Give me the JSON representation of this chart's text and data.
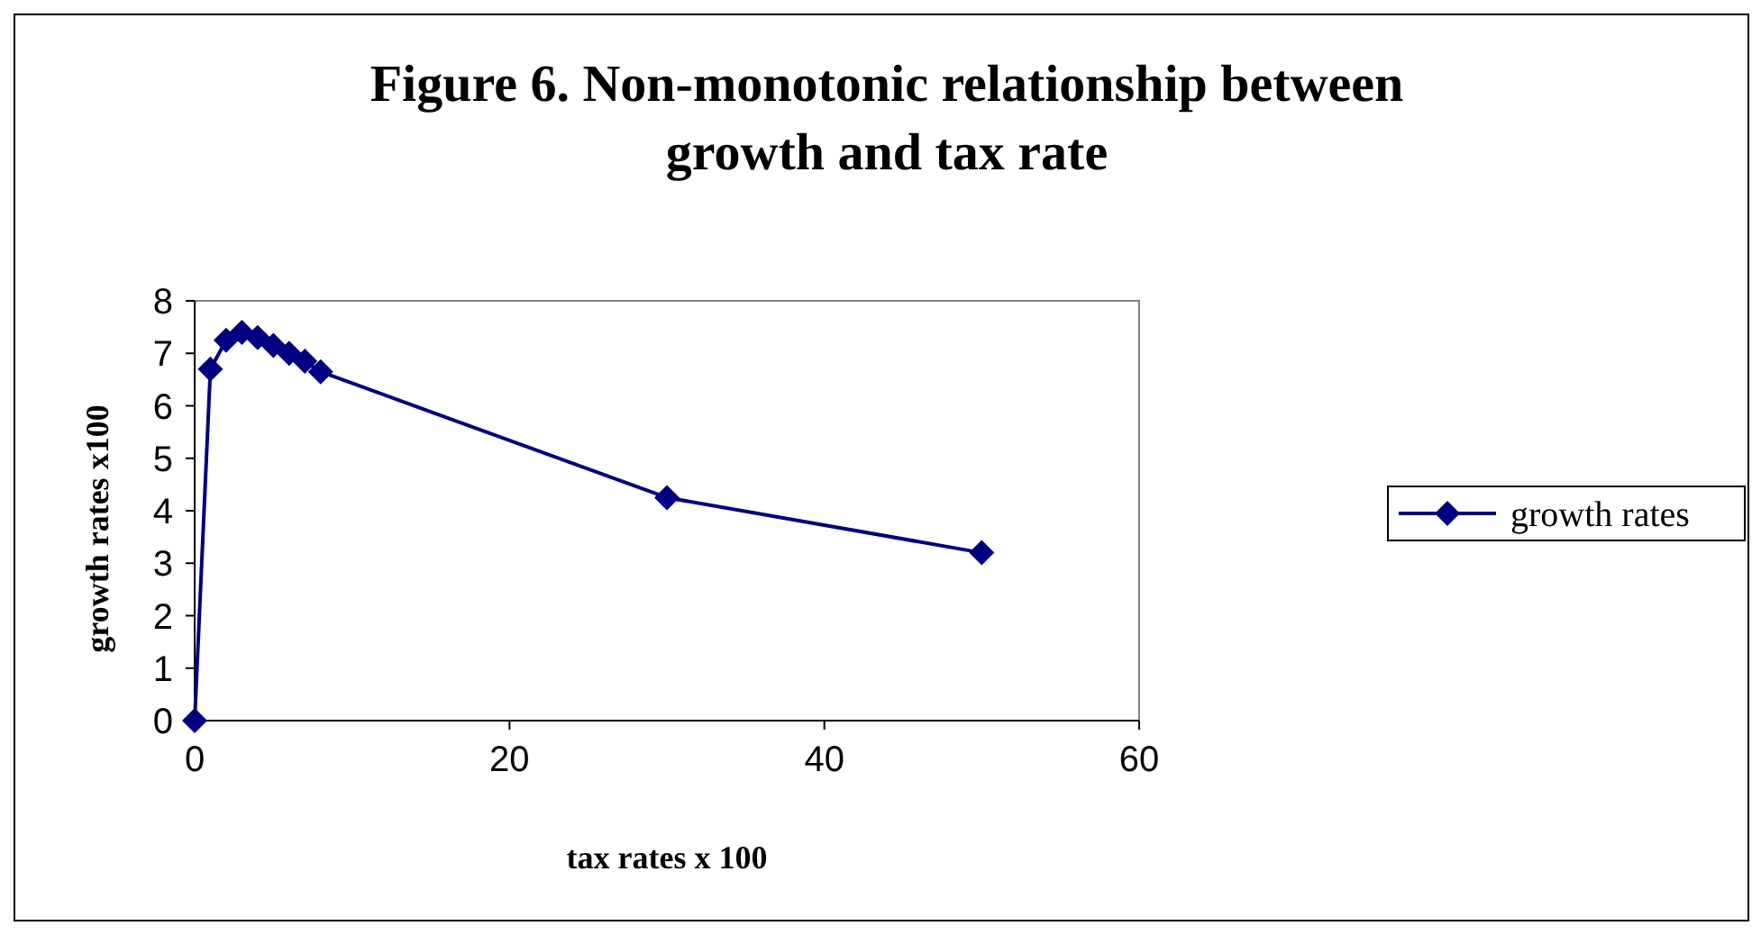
{
  "chart_data": {
    "type": "line",
    "title": "Figure 6. Non-monotonic relationship between growth and tax rate",
    "xlabel": "tax rates x 100",
    "ylabel": "growth rates x100",
    "x": [
      0,
      1,
      2,
      3,
      4,
      5,
      6,
      7,
      8,
      30,
      50
    ],
    "series": [
      {
        "name": "growth rates",
        "color": "#000080",
        "values": [
          0,
          6.7,
          7.25,
          7.4,
          7.3,
          7.15,
          7.0,
          6.85,
          6.65,
          4.25,
          3.2
        ]
      }
    ],
    "xlim": [
      0,
      60
    ],
    "xticks": [
      0,
      20,
      40,
      60
    ],
    "ylim": [
      0,
      8
    ],
    "yticks": [
      0,
      1,
      2,
      3,
      4,
      5,
      6,
      7,
      8
    ],
    "grid": false,
    "legend": "right",
    "marker": "diamond",
    "line_style": "solid"
  }
}
